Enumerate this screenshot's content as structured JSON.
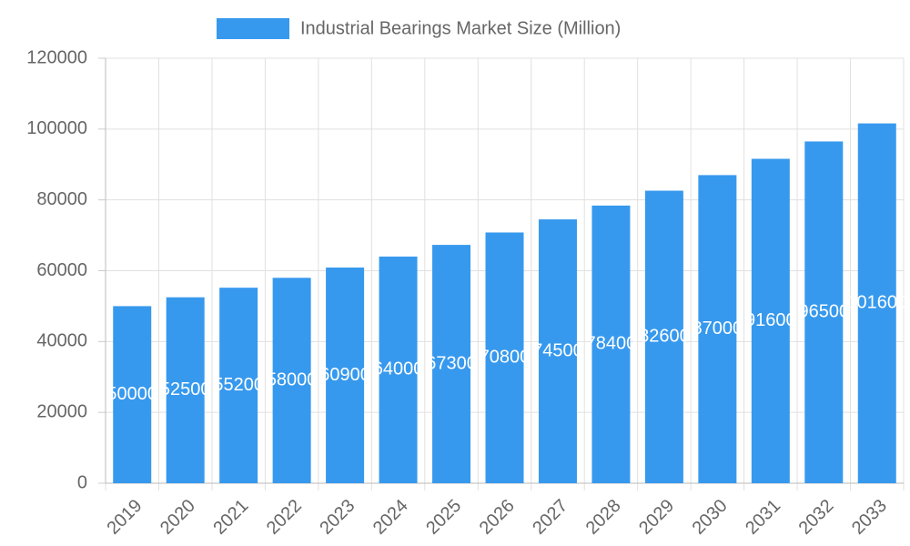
{
  "chart_data": {
    "type": "bar",
    "categories": [
      "2019",
      "2020",
      "2021",
      "2022",
      "2023",
      "2024",
      "2025",
      "2026",
      "2027",
      "2028",
      "2029",
      "2030",
      "2031",
      "2032",
      "2033"
    ],
    "series": [
      {
        "name": "Industrial Bearings Market Size (Million)",
        "color": "#3799ee",
        "values": [
          50000,
          52500,
          55200,
          58000,
          60900,
          64000,
          67300,
          70800,
          74500,
          78400,
          82600,
          87000,
          91600,
          96500,
          101600
        ]
      }
    ],
    "ylim": [
      0,
      120000
    ],
    "yticks": [
      0,
      20000,
      40000,
      60000,
      80000,
      100000,
      120000
    ],
    "grid": true,
    "legend": "top"
  }
}
